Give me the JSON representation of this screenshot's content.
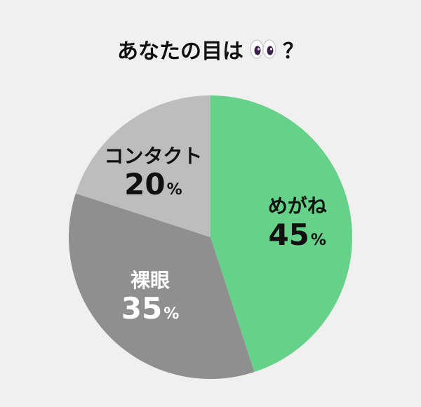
{
  "title": {
    "text": "あなたの目は",
    "suffix": "？",
    "icon": "eyes-icon"
  },
  "chart_data": {
    "type": "pie",
    "title": "あなたの目は 👀 ？",
    "slices": [
      {
        "label": "めがね",
        "value": 45,
        "unit": "%",
        "color": "#66d188",
        "label_color": "#111111"
      },
      {
        "label": "裸眼",
        "value": 35,
        "unit": "%",
        "color": "#8f8f8f",
        "label_color": "#ffffff"
      },
      {
        "label": "コンタクト",
        "value": 20,
        "unit": "%",
        "color": "#bdbdbd",
        "label_color": "#111111"
      }
    ],
    "start": "top",
    "direction": "clockwise",
    "legend": "none"
  }
}
